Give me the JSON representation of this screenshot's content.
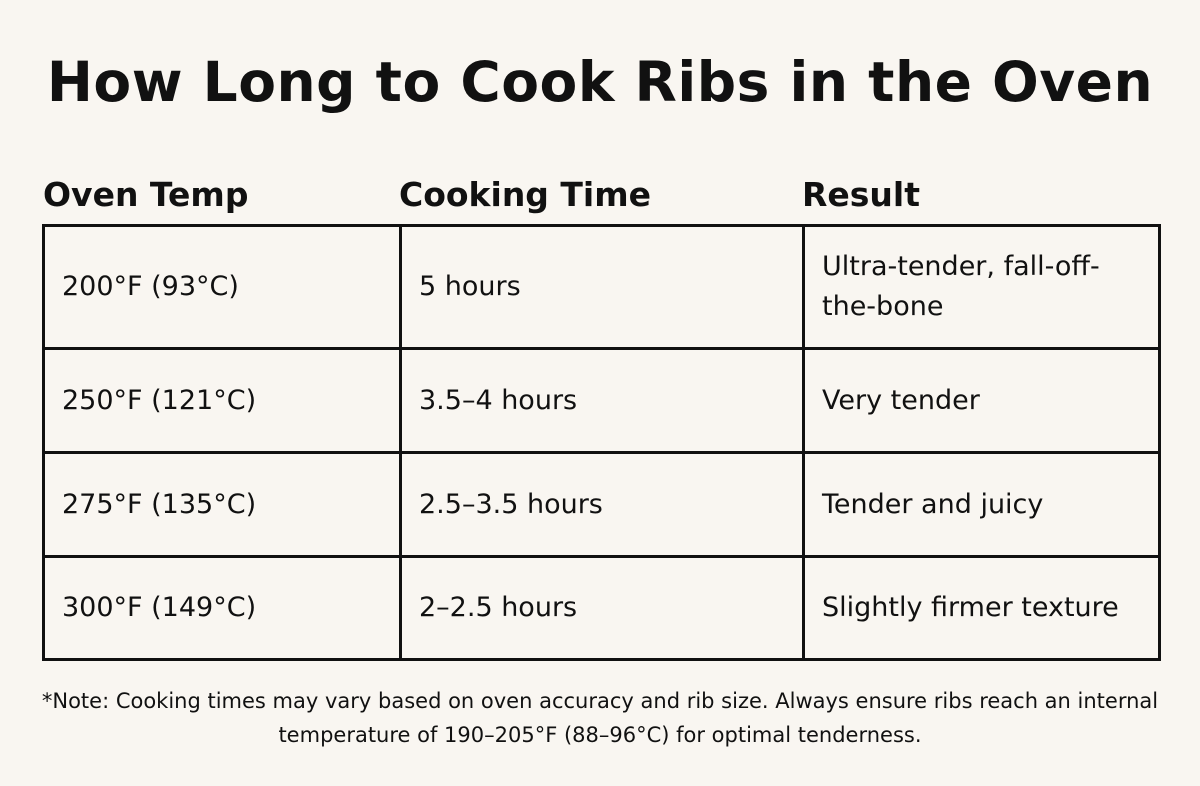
{
  "title": "How Long to Cook Ribs in the Oven",
  "table": {
    "headers": {
      "temp": "Oven Temp",
      "time": "Cooking Time",
      "result": "Result"
    },
    "rows": [
      {
        "temp": "200°F (93°C)",
        "time": "5 hours",
        "result": "Ultra-tender, fall-off-the-bone"
      },
      {
        "temp": "250°F (121°C)",
        "time": "3.5–4 hours",
        "result": "Very tender"
      },
      {
        "temp": "275°F (135°C)",
        "time": "2.5–3.5 hours",
        "result": "Tender and juicy"
      },
      {
        "temp": "300°F (149°C)",
        "time": "2–2.5 hours",
        "result": "Slightly firmer texture"
      }
    ]
  },
  "note": "*Note: Cooking times may vary based on oven accuracy and rib size. Always ensure ribs reach an internal temperature of 190–205°F (88–96°C) for optimal tenderness."
}
